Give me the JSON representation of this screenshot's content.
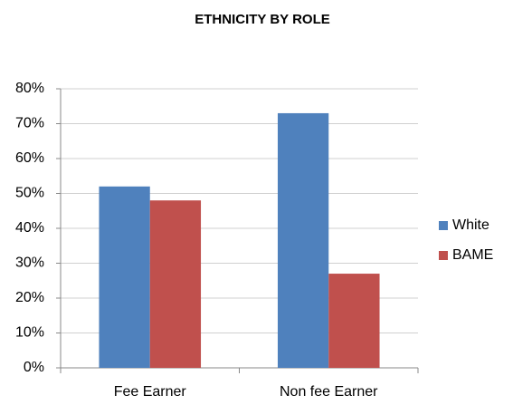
{
  "chart_data": {
    "type": "bar",
    "title": "ETHNICITY BY ROLE",
    "categories": [
      "Fee Earner",
      "Non fee Earner"
    ],
    "series": [
      {
        "name": "White",
        "color": "#4f81bd",
        "values": [
          52,
          73
        ]
      },
      {
        "name": "BAME",
        "color": "#c0504d",
        "values": [
          48,
          27
        ]
      }
    ],
    "ylim": [
      0,
      80
    ],
    "yticks": [
      {
        "value": 0,
        "label": "0%"
      },
      {
        "value": 10,
        "label": "10%"
      },
      {
        "value": 20,
        "label": "20%"
      },
      {
        "value": 30,
        "label": "30%"
      },
      {
        "value": 40,
        "label": "40%"
      },
      {
        "value": 50,
        "label": "50%"
      },
      {
        "value": 60,
        "label": "60%"
      },
      {
        "value": 70,
        "label": "70%"
      },
      {
        "value": 80,
        "label": "80%"
      }
    ],
    "grid": true,
    "legend": "right"
  }
}
